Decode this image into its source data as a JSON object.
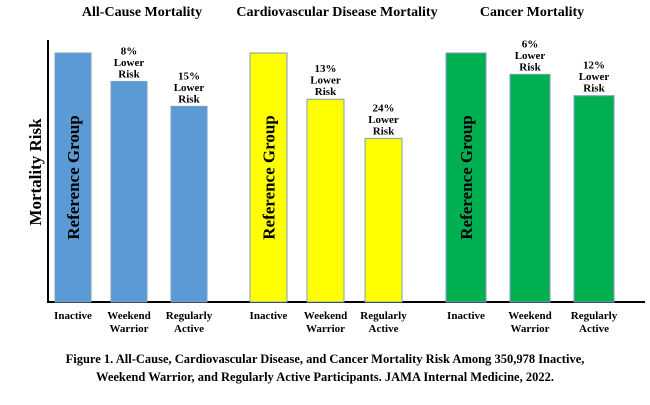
{
  "chart_data": {
    "type": "bar",
    "ylabel": "Mortality Risk",
    "ylim": [
      30,
      100
    ],
    "grid": false,
    "legend": "none",
    "categories": [
      "Inactive",
      "Weekend Warrior",
      "Regularly Active"
    ],
    "category_lines": [
      [
        "Inactive"
      ],
      [
        "Weekend",
        "Warrior"
      ],
      [
        "Regularly",
        "Active"
      ]
    ],
    "reference_label": "Reference Group",
    "panels": [
      {
        "title": "All-Cause Mortality",
        "color": "#5B9BD5",
        "values": [
          100,
          92,
          85
        ],
        "labels": [
          "",
          "8%|Lower|Risk",
          "15%|Lower|Risk"
        ]
      },
      {
        "title": "Cardiovascular Disease Mortality",
        "color": "#FFFF00",
        "values": [
          100,
          87,
          76
        ],
        "labels": [
          "",
          "13%|Lower|Risk",
          "24%|Lower|Risk"
        ]
      },
      {
        "title": "Cancer Mortality",
        "color": "#00B050",
        "values": [
          100,
          94,
          88
        ],
        "labels": [
          "",
          "6%|Lower|Risk",
          "12%|Lower|Risk"
        ]
      }
    ]
  },
  "caption": {
    "line1": "Figure 1. All-Cause, Cardiovascular Disease, and Cancer Mortality Risk Among 350,978 Inactive,",
    "line2": "Weekend Warrior, and Regularly Active Participants. JAMA Internal Medicine, 2022."
  }
}
